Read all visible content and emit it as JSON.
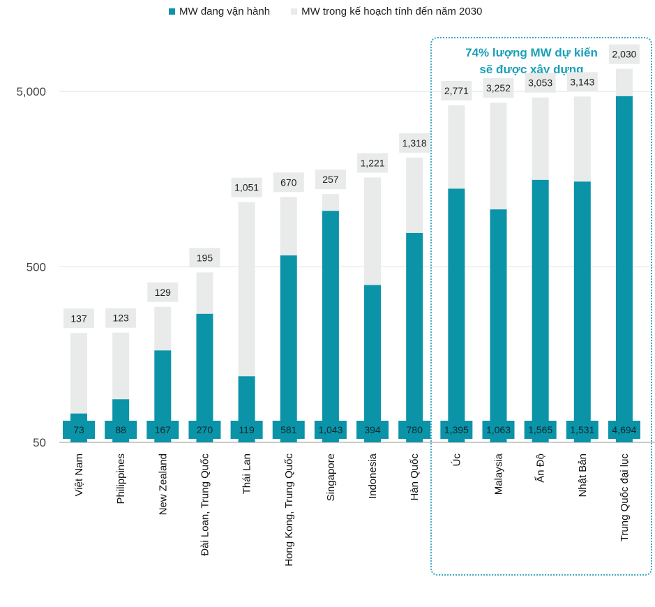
{
  "legend": {
    "operating_label": "MW đang vận hành",
    "planned_label": "MW trong kế hoạch tính đến năm 2030"
  },
  "callout": {
    "line1": "74% lượng MW dự kiến",
    "line2": "sẽ được xây dựng"
  },
  "colors": {
    "operating": "#0b93a8",
    "planned": "#e9eaea",
    "callout": "#1a9fb8"
  },
  "chart_data": {
    "type": "bar",
    "stacked": true,
    "y_scale": "log",
    "ylim": [
      50,
      5000
    ],
    "yticks": [
      50,
      500,
      5000
    ],
    "ytick_labels": [
      "50",
      "500",
      "5,000"
    ],
    "grid": true,
    "legend_position": "top",
    "categories": [
      "Việt Nam",
      "Philippines",
      "New Zealand",
      "Đài Loan, Trung Quốc",
      "Thái Lan",
      "Hong Kong, Trung Quốc",
      "Singapore",
      "Indonesia",
      "Hàn Quốc",
      "Úc",
      "Malaysia",
      "Ấn Độ",
      "Nhật Bản",
      "Trung Quốc đại lục"
    ],
    "series": [
      {
        "name": "MW đang vận hành",
        "values": [
          73,
          88,
          167,
          270,
          119,
          581,
          1043,
          394,
          780,
          1395,
          1063,
          1565,
          1531,
          4694
        ],
        "labels": [
          "73",
          "88",
          "167",
          "270",
          "119",
          "581",
          "1,043",
          "394",
          "780",
          "1,395",
          "1,063",
          "1,565",
          "1,531",
          "4,694"
        ]
      },
      {
        "name": "MW trong kế hoạch tính đến năm 2030",
        "values": [
          137,
          123,
          129,
          195,
          1051,
          670,
          257,
          1221,
          1318,
          2771,
          3252,
          3053,
          3143,
          2030
        ],
        "labels": [
          "137",
          "123",
          "129",
          "195",
          "1,051",
          "670",
          "257",
          "1,221",
          "1,318",
          "2,771",
          "3,252",
          "3,053",
          "3,143",
          "2,030"
        ]
      }
    ],
    "highlight_categories": [
      "Úc",
      "Malaysia",
      "Ấn Độ",
      "Nhật Bản",
      "Trung Quốc đại lục"
    ]
  }
}
